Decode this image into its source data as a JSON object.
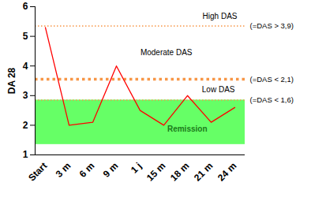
{
  "chart_data": {
    "type": "line",
    "y_label": "DA 28",
    "categories": [
      "Start",
      "3 m",
      "6 m",
      "9 m",
      "1 j",
      "15 m",
      "18 m",
      "21 m",
      "24 m"
    ],
    "values": [
      5.3,
      2.0,
      2.1,
      4.0,
      2.5,
      2.0,
      3.0,
      2.1,
      2.6
    ],
    "color": "#ff0000",
    "ylim": [
      1,
      6
    ],
    "yticks": [
      1,
      2,
      3,
      4,
      5,
      6
    ],
    "grid": false,
    "thresholds": [
      {
        "value": 5.35,
        "label": "(=DAS > 3,9)",
        "color": "#f79646",
        "line_style": "dotted"
      },
      {
        "value": 3.55,
        "label": "(=DAS < 2,1)",
        "color": "#f79646",
        "line_style": "dotted"
      },
      {
        "value": 2.85,
        "label": "(=DAS < 1,6)",
        "color": "#f79646",
        "line_style": "dotted"
      }
    ],
    "regions": [
      {
        "label": "High DAS",
        "range": [
          5.35,
          6
        ]
      },
      {
        "label": "Moderate DAS",
        "range": [
          3.55,
          5.35
        ]
      },
      {
        "label": "Low DAS",
        "range": [
          2.85,
          3.55
        ]
      },
      {
        "label": "Remission",
        "range": [
          1.35,
          2.85
        ],
        "color": "#66ff66"
      }
    ]
  }
}
